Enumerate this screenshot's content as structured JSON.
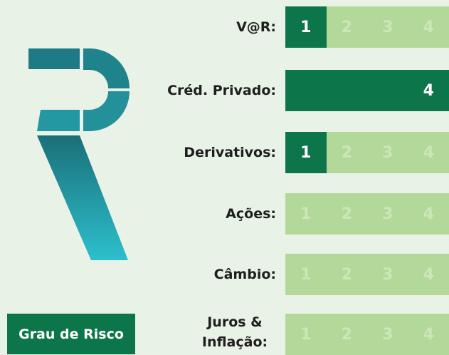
{
  "badge": "Grau de Risco",
  "levels": [
    1,
    2,
    3,
    4
  ],
  "rows": [
    {
      "label": "V@R:",
      "level": 1
    },
    {
      "label": "Créd. Privado:",
      "level": 4
    },
    {
      "label": "Derivativos:",
      "level": 1
    },
    {
      "label": "Ações:",
      "level": 0
    },
    {
      "label": "Câmbio:",
      "level": 0
    },
    {
      "label": "Juros & Inflação:",
      "level": 0
    }
  ]
}
